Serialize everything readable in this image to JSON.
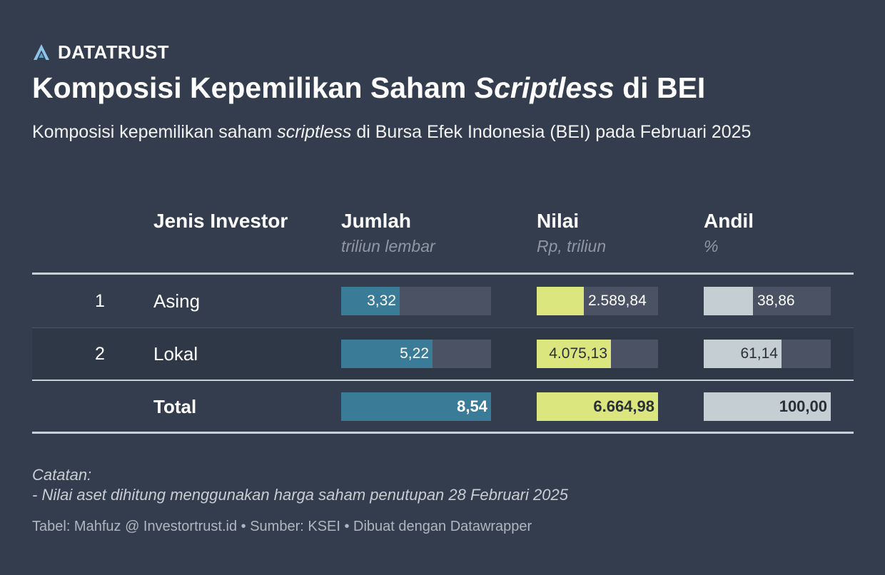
{
  "brand": {
    "name": "DATATRUST",
    "icon": "datatrust-logo-icon"
  },
  "title": {
    "pre": "Komposisi Kepemilikan Saham ",
    "italic": "Scriptless",
    "post": " di BEI"
  },
  "subtitle": {
    "pre": "Komposisi kepemilikan saham ",
    "italic": "scriptless",
    "post": " di Bursa Efek Indonesia (BEI) pada Februari 2025"
  },
  "colors": {
    "background": "#343d4d",
    "jumlah": "#3a7b98",
    "nilai": "#dbe67e",
    "andil": "#c4ced3",
    "track": "#4a5263",
    "rule": "#c7d0d6"
  },
  "chart_data": {
    "type": "table",
    "columns": [
      {
        "key": "jenis",
        "label": "Jenis Investor",
        "unit": ""
      },
      {
        "key": "jumlah",
        "label": "Jumlah",
        "unit": "triliun lembar"
      },
      {
        "key": "nilai",
        "label": "Nilai",
        "unit": "Rp, triliun"
      },
      {
        "key": "andil",
        "label": "Andil",
        "unit": "%"
      }
    ],
    "rows": [
      {
        "no": "1",
        "jenis": "Asing",
        "jumlah": 3.32,
        "jumlah_text": "3,32",
        "nilai": 2589.84,
        "nilai_text": "2.589,84",
        "andil": 38.86,
        "andil_text": "38,86"
      },
      {
        "no": "2",
        "jenis": "Lokal",
        "jumlah": 5.22,
        "jumlah_text": "5,22",
        "nilai": 4075.13,
        "nilai_text": "4.075,13",
        "andil": 61.14,
        "andil_text": "61,14"
      }
    ],
    "total": {
      "label": "Total",
      "jumlah": 8.54,
      "jumlah_text": "8,54",
      "nilai": 6664.98,
      "nilai_text": "6.664,98",
      "andil": 100.0,
      "andil_text": "100,00"
    }
  },
  "notes": {
    "heading": "Catatan:",
    "line1": "- Nilai aset dihitung menggunakan harga saham penutupan 28 Februari 2025"
  },
  "footer": "Tabel: Mahfuz @ Investortrust.id • Sumber: KSEI • Dibuat dengan Datawrapper"
}
